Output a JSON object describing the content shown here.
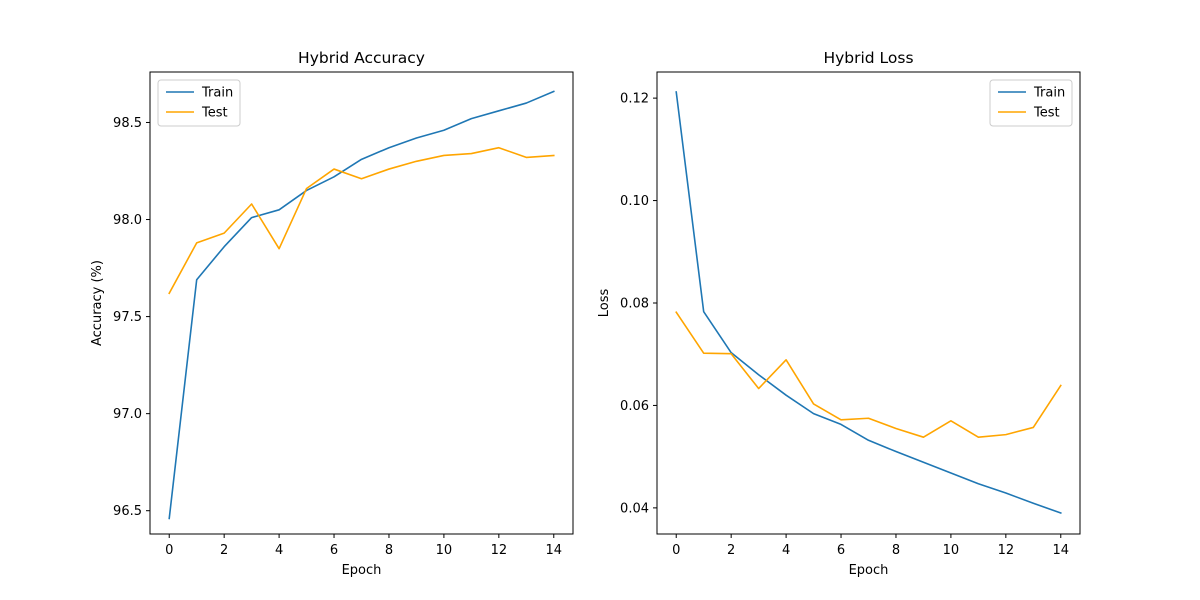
{
  "chart_data": [
    {
      "type": "line",
      "title": "Hybrid Accuracy",
      "xlabel": "Epoch",
      "ylabel": "Accuracy (%)",
      "xlim": [
        -0.7,
        14.7
      ],
      "ylim": [
        96.38,
        98.76
      ],
      "xticks": [
        0,
        2,
        4,
        6,
        8,
        10,
        12,
        14
      ],
      "xtick_labels": [
        "0",
        "2",
        "4",
        "6",
        "8",
        "10",
        "12",
        "14"
      ],
      "yticks": [
        96.5,
        97.0,
        97.5,
        98.0,
        98.5
      ],
      "ytick_labels": [
        "96.5",
        "97.0",
        "97.5",
        "98.0",
        "98.5"
      ],
      "legend": "top-left",
      "grid": false,
      "x": [
        0,
        1,
        2,
        3,
        4,
        5,
        6,
        7,
        8,
        9,
        10,
        11,
        12,
        13,
        14
      ],
      "series": [
        {
          "name": "Train",
          "color": "#1f77b4",
          "values": [
            96.46,
            97.69,
            97.86,
            98.01,
            98.05,
            98.15,
            98.22,
            98.31,
            98.37,
            98.42,
            98.46,
            98.52,
            98.56,
            98.6,
            98.66
          ]
        },
        {
          "name": "Test",
          "color": "#ffa500",
          "values": [
            97.62,
            97.88,
            97.93,
            98.08,
            97.85,
            98.16,
            98.26,
            98.21,
            98.26,
            98.3,
            98.33,
            98.34,
            98.37,
            98.32,
            98.33
          ]
        }
      ]
    },
    {
      "type": "line",
      "title": "Hybrid Loss",
      "xlabel": "Epoch",
      "ylabel": "Loss",
      "xlim": [
        -0.7,
        14.7
      ],
      "ylim": [
        0.0349,
        0.1251
      ],
      "xticks": [
        0,
        2,
        4,
        6,
        8,
        10,
        12,
        14
      ],
      "xtick_labels": [
        "0",
        "2",
        "4",
        "6",
        "8",
        "10",
        "12",
        "14"
      ],
      "yticks": [
        0.04,
        0.06,
        0.08,
        0.1,
        0.12
      ],
      "ytick_labels": [
        "0.04",
        "0.06",
        "0.08",
        "0.10",
        "0.12"
      ],
      "legend": "top-right",
      "grid": false,
      "x": [
        0,
        1,
        2,
        3,
        4,
        5,
        6,
        7,
        8,
        9,
        10,
        11,
        12,
        13,
        14
      ],
      "series": [
        {
          "name": "Train",
          "color": "#1f77b4",
          "values": [
            0.1212,
            0.0783,
            0.0703,
            0.066,
            0.062,
            0.0584,
            0.0563,
            0.0532,
            0.051,
            0.0489,
            0.0468,
            0.0447,
            0.0429,
            0.0409,
            0.039
          ]
        },
        {
          "name": "Test",
          "color": "#ffa500",
          "values": [
            0.0782,
            0.0702,
            0.0701,
            0.0633,
            0.0689,
            0.0603,
            0.0572,
            0.0575,
            0.0555,
            0.0538,
            0.057,
            0.0538,
            0.0543,
            0.0557,
            0.0639
          ]
        }
      ]
    }
  ]
}
